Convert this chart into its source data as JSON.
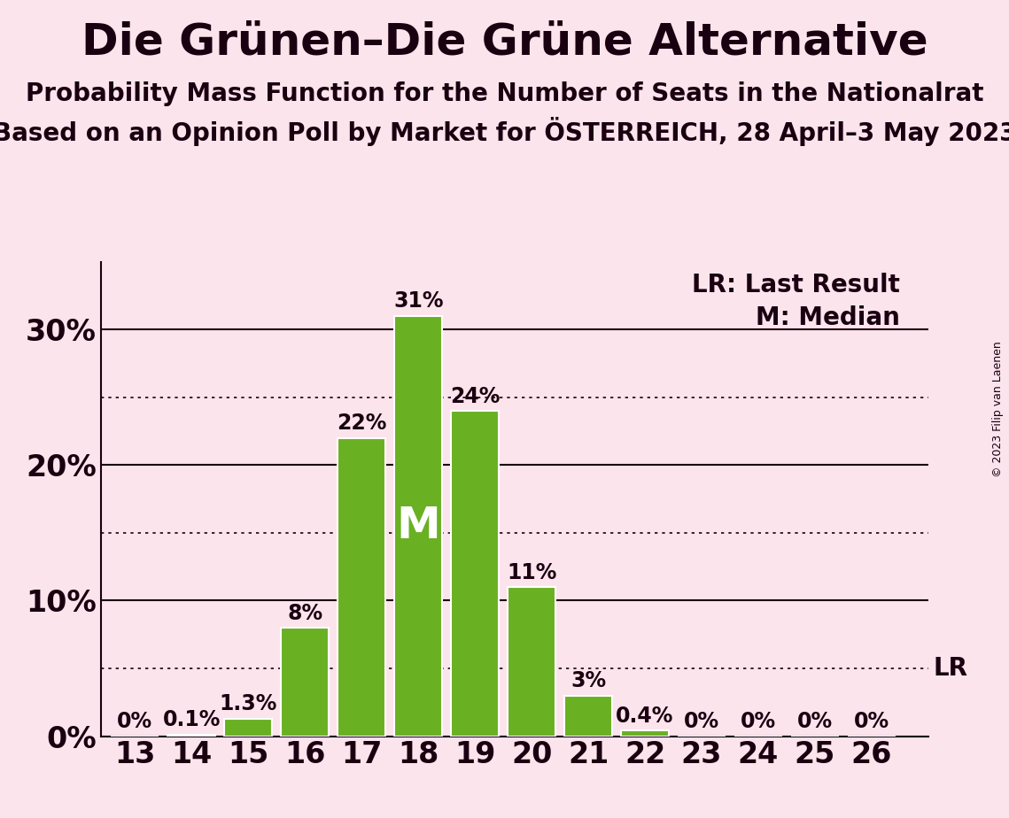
{
  "title": "Die Grünen–Die Grüne Alternative",
  "subtitle1": "Probability Mass Function for the Number of Seats in the Nationalrat",
  "subtitle2": "Based on an Opinion Poll by Market for ÖSTERREICH, 28 April–3 May 2023",
  "copyright": "© 2023 Filip van Laenen",
  "seats": [
    13,
    14,
    15,
    16,
    17,
    18,
    19,
    20,
    21,
    22,
    23,
    24,
    25,
    26
  ],
  "probabilities": [
    0.0,
    0.1,
    1.3,
    8.0,
    22.0,
    31.0,
    24.0,
    11.0,
    3.0,
    0.4,
    0.0,
    0.0,
    0.0,
    0.0
  ],
  "bar_color": "#6ab023",
  "bar_edge_color": "#ffffff",
  "background_color": "#fce4ec",
  "text_color": "#1a0010",
  "yticks_solid": [
    0,
    10,
    20,
    30
  ],
  "yticks_dotted": [
    5,
    15,
    25
  ],
  "ylim": [
    0,
    35
  ],
  "median_seat": 18,
  "median_label": "M",
  "lr_value": 5.0,
  "lr_label": "LR",
  "legend_lr": "LR: Last Result",
  "legend_m": "M: Median",
  "title_fontsize": 36,
  "subtitle_fontsize": 20,
  "axis_label_fontsize": 24,
  "bar_label_fontsize": 17,
  "legend_fontsize": 20,
  "median_fontsize": 36
}
